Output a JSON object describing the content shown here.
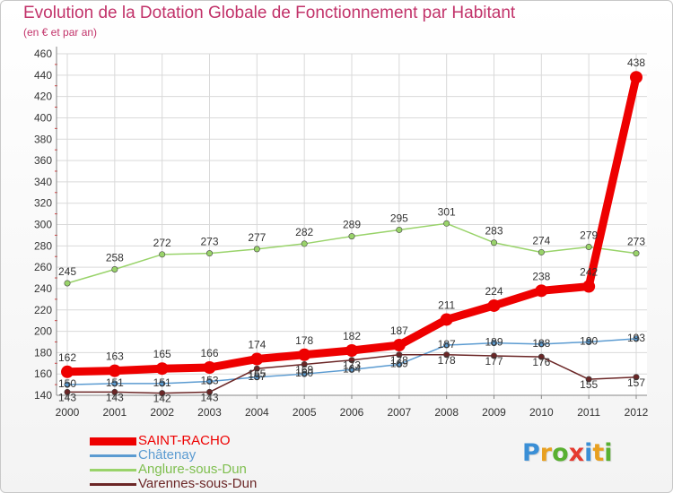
{
  "title": "Evolution de la Dotation Globale de Fonctionnement par Habitant",
  "subtitle": "(en € et par an)",
  "logo": {
    "text": "Proxiti",
    "letters": [
      {
        "ch": "P",
        "color": "#3a8fd6"
      },
      {
        "ch": "r",
        "color": "#e8a020"
      },
      {
        "ch": "o",
        "color": "#59b031"
      },
      {
        "ch": "x",
        "color": "#e53a2f"
      },
      {
        "ch": "i",
        "color": "#3a8fd6"
      },
      {
        "ch": "t",
        "color": "#e8a020"
      },
      {
        "ch": "i",
        "color": "#59b031"
      }
    ]
  },
  "colors": {
    "title": "#c2336a",
    "axis": "#888888",
    "grid": "#d9d9d9",
    "tick_marks_red": "#e03030"
  },
  "chart_data": {
    "type": "line",
    "x": [
      "2000",
      "2001",
      "2002",
      "2003",
      "2004",
      "2005",
      "2006",
      "2007",
      "2008",
      "2009",
      "2010",
      "2011",
      "2012"
    ],
    "ylim": [
      140,
      460
    ],
    "yticks": [
      140,
      160,
      180,
      200,
      220,
      240,
      260,
      280,
      300,
      320,
      340,
      360,
      380,
      400,
      420,
      440,
      460
    ],
    "grid": true,
    "legend_position": "bottom-left",
    "series": [
      {
        "name": "SAINT-RACHO",
        "color": "#ee0000",
        "width": 9,
        "values": [
          162,
          163,
          165,
          166,
          174,
          178,
          182,
          187,
          211,
          224,
          238,
          242,
          438
        ],
        "labels": [
          "162",
          "163",
          "165",
          "166",
          "174",
          "178",
          "182",
          "187",
          "211",
          "224",
          "238",
          "242",
          "438"
        ]
      },
      {
        "name": "Châtenay",
        "color": "#5b9bd1",
        "width": 1.5,
        "values": [
          150,
          151,
          151,
          153,
          157,
          160,
          164,
          169,
          187,
          189,
          188,
          190,
          193
        ],
        "labels": [
          "150",
          "151",
          "151",
          "153",
          "157",
          "160",
          "164",
          "169",
          "187",
          "189",
          "188",
          "190",
          "193"
        ]
      },
      {
        "name": "Anglure-sous-Dun",
        "color": "#99d36a",
        "width": 1.5,
        "values": [
          245,
          258,
          272,
          273,
          277,
          282,
          289,
          295,
          301,
          283,
          274,
          279,
          273
        ],
        "labels": [
          "245",
          "258",
          "272",
          "273",
          "277",
          "282",
          "289",
          "295",
          "301",
          "283",
          "274",
          "279",
          "273"
        ]
      },
      {
        "name": "Varennes-sous-Dun",
        "color": "#6b2626",
        "width": 1.5,
        "values": [
          143,
          143,
          142,
          143,
          165,
          169,
          173,
          178,
          178,
          177,
          176,
          155,
          157
        ],
        "labels": [
          "143",
          "143",
          "142",
          "143",
          "165",
          "169",
          "173",
          "178",
          "178",
          "177",
          "176",
          "155",
          "157"
        ]
      }
    ]
  }
}
